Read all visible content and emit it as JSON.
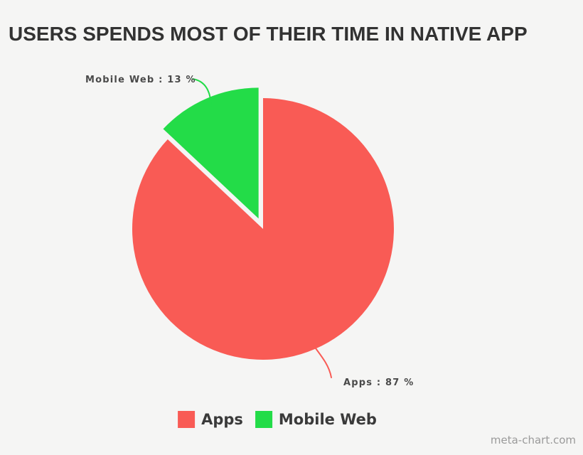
{
  "page": {
    "background_color": "#f5f5f4",
    "watermark": "meta-chart.com"
  },
  "chart_data": {
    "type": "pie",
    "title": "USERS SPENDS MOST OF THEIR TIME IN NATIVE APP",
    "slices": [
      {
        "label": "Apps",
        "value": 87,
        "color": "#f95b55",
        "exploded": false
      },
      {
        "label": "Mobile Web",
        "value": 13,
        "color": "#23dc48",
        "exploded": true
      }
    ],
    "start_angle_deg": 0,
    "direction": "clockwise",
    "legend_position": "bottom",
    "callouts": [
      {
        "slice": "Mobile Web",
        "text": "Mobile Web : 13 %"
      },
      {
        "slice": "Apps",
        "text": "Apps : 87 %"
      }
    ]
  },
  "legend": {
    "items": [
      {
        "label": "Apps",
        "color": "#f95b55"
      },
      {
        "label": "Mobile Web",
        "color": "#23dc48"
      }
    ]
  }
}
